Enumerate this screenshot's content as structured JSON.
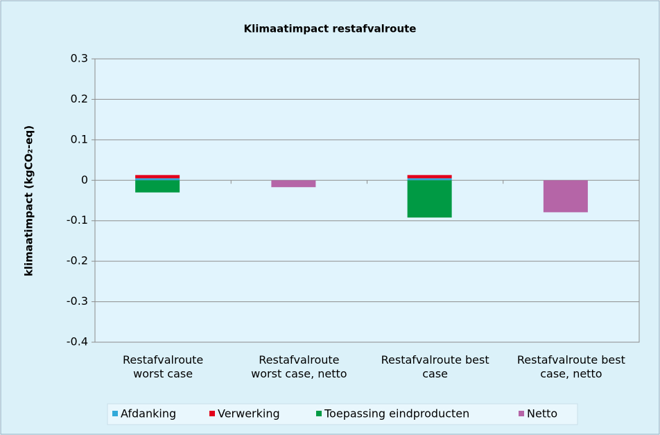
{
  "chart_data": {
    "type": "stacked_bar",
    "title": "Klimaatimpact restafvalroute",
    "y_label": "klimaatimpact (kgCO₂-eq)",
    "categories": [
      "Restafvalroute worst case",
      "Restafvalroute worst case, netto",
      "Restafvalroute best case",
      "Restafvalroute best case, netto"
    ],
    "series": [
      {
        "name": "Afdanking",
        "color": "#31a9d9",
        "values": [
          0.005,
          null,
          0.005,
          null
        ]
      },
      {
        "name": "Verwerking",
        "color": "#e3001b",
        "values": [
          0.008,
          null,
          0.008,
          null
        ]
      },
      {
        "name": "Toepassing eindproducten",
        "color": "#009a44",
        "values": [
          -0.03,
          null,
          -0.092,
          null
        ]
      },
      {
        "name": "Netto",
        "color": "#b565a7",
        "values": [
          null,
          -0.017,
          null,
          -0.079
        ]
      }
    ],
    "ylim": [
      -0.4,
      0.3
    ],
    "yticks": [
      0.3,
      0.2,
      0.1,
      0,
      -0.1,
      -0.2,
      -0.3,
      -0.4
    ],
    "grid": true
  }
}
